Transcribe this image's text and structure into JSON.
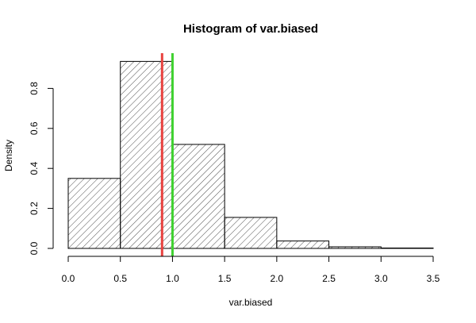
{
  "chart_data": {
    "type": "bar",
    "title": "Histogram of var.biased",
    "xlabel": "var.biased",
    "ylabel": "Density",
    "xlim": [
      0,
      3.5
    ],
    "ylim": [
      0,
      0.93
    ],
    "xticks": [
      "0.0",
      "0.5",
      "1.0",
      "1.5",
      "2.0",
      "2.5",
      "3.0",
      "3.5"
    ],
    "yticks": [
      "0.0",
      "0.2",
      "0.4",
      "0.6",
      "0.8"
    ],
    "bins": [
      {
        "start": 0.0,
        "end": 0.5,
        "density": 0.35
      },
      {
        "start": 0.5,
        "end": 1.0,
        "density": 0.935
      },
      {
        "start": 1.0,
        "end": 1.5,
        "density": 0.52
      },
      {
        "start": 1.5,
        "end": 2.0,
        "density": 0.155
      },
      {
        "start": 2.0,
        "end": 2.5,
        "density": 0.037
      },
      {
        "start": 2.5,
        "end": 3.0,
        "density": 0.008
      },
      {
        "start": 3.0,
        "end": 3.5,
        "density": 0.002
      }
    ],
    "vlines": [
      {
        "x": 0.9,
        "color": "#e8413e"
      },
      {
        "x": 1.0,
        "color": "#3fd12f"
      }
    ],
    "grid": false,
    "legend": "none"
  }
}
